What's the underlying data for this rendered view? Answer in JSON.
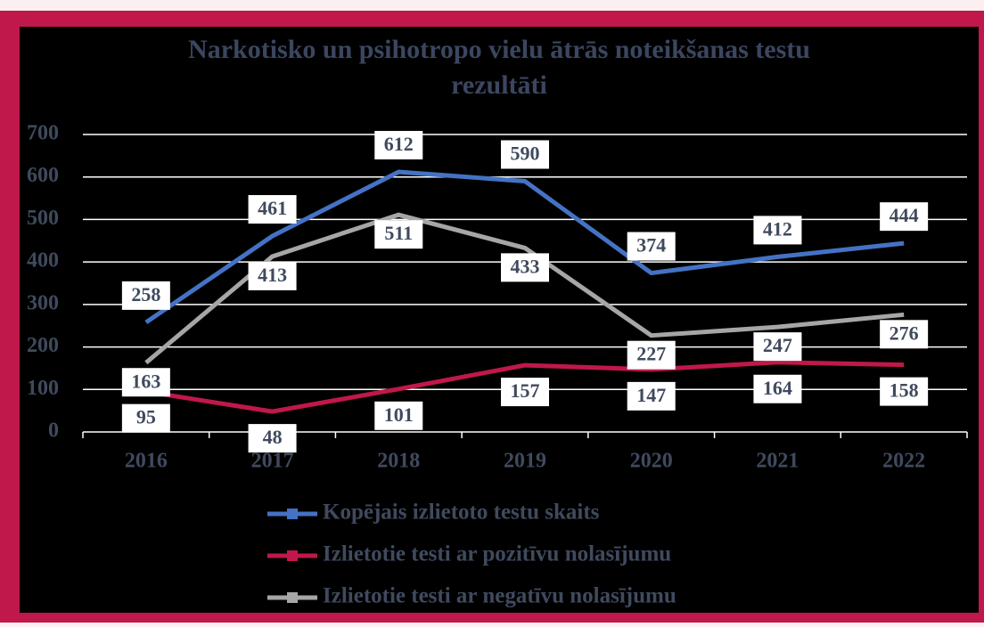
{
  "chart_data": {
    "type": "line",
    "title": "Narkotisko un psihotropo vielu ātrās noteikšanas testu rezultāti",
    "categories": [
      "2016",
      "2017",
      "2018",
      "2019",
      "2020",
      "2021",
      "2022"
    ],
    "series": [
      {
        "name": "Kopējais izlietoto testu skaits",
        "color": "#4472c4",
        "values": [
          258,
          461,
          612,
          590,
          374,
          412,
          444
        ]
      },
      {
        "name": "Izlietotie testi ar pozitīvu nolasījumu",
        "color": "#c0184a",
        "values": [
          95,
          48,
          101,
          157,
          147,
          164,
          158
        ]
      },
      {
        "name": "Izlietotie testi ar negatīvu nolasījumu",
        "color": "#a6a6a6",
        "values": [
          163,
          413,
          511,
          433,
          227,
          247,
          276
        ]
      }
    ],
    "ylim": [
      0,
      700
    ],
    "yticks": [
      0,
      100,
      200,
      300,
      400,
      500,
      600,
      700
    ],
    "grid": true,
    "legend": "bottom"
  }
}
